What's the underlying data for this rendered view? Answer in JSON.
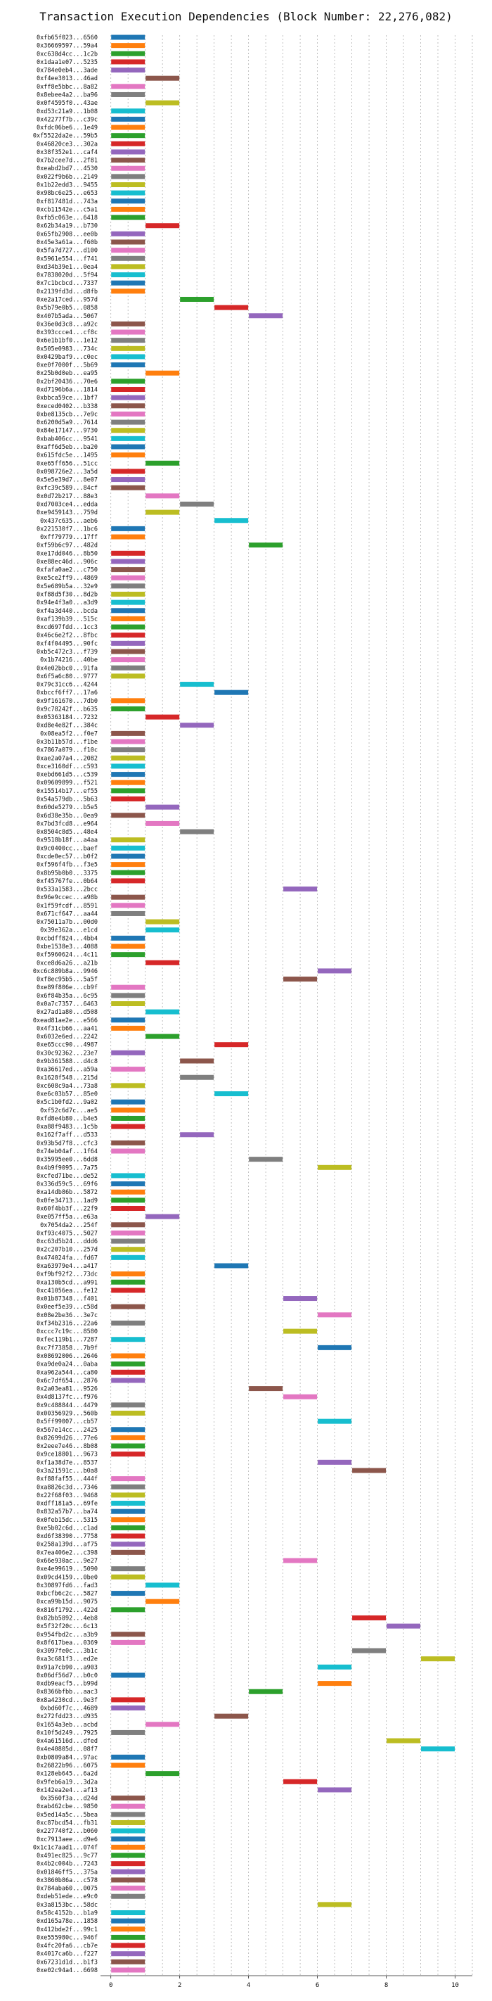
{
  "chart_data": {
    "type": "bar",
    "orientation": "horizontal",
    "title": "Transaction Execution Dependencies (Block Number: 22,276,082)",
    "xlabel": "",
    "ylabel": "",
    "xlim": [
      -0.3,
      10.5
    ],
    "xticks": [
      0,
      2,
      4,
      6,
      8,
      10
    ],
    "grid": "vertical dashed",
    "palette": [
      "#1f77b4",
      "#ff7f0e",
      "#2ca02c",
      "#d62728",
      "#9467bd",
      "#8c564b",
      "#e377c2",
      "#7f7f7f",
      "#bcbd22",
      "#17becf"
    ],
    "bar_width": 1,
    "transactions": [
      {
        "tx": "0xfb65f023...6560",
        "start": 0
      },
      {
        "tx": "0x36669597...59a4",
        "start": 0
      },
      {
        "tx": "0xc638d4cc...1c2b",
        "start": 0
      },
      {
        "tx": "0x1daa1e07...5235",
        "start": 0
      },
      {
        "tx": "0x784e0eb4...3ade",
        "start": 0
      },
      {
        "tx": "0xf4ee3013...46ad",
        "start": 1
      },
      {
        "tx": "0xff8e5bbc...8a82",
        "start": 0
      },
      {
        "tx": "0x8ebee4a2...ba96",
        "start": 0
      },
      {
        "tx": "0x0f4595f0...43ae",
        "start": 1
      },
      {
        "tx": "0xd53c21a9...1b08",
        "start": 0
      },
      {
        "tx": "0x42277f7b...c39c",
        "start": 0
      },
      {
        "tx": "0xfdc06be6...1e49",
        "start": 0
      },
      {
        "tx": "0xf5522da2e...59b5",
        "start": 0
      },
      {
        "tx": "0x46820ce3...302a",
        "start": 0
      },
      {
        "tx": "0x38f352e1...caf4",
        "start": 0
      },
      {
        "tx": "0x7b2cee7d...2f81",
        "start": 0
      },
      {
        "tx": "0xeabd2bd7...4530",
        "start": 0
      },
      {
        "tx": "0x022f9b6b...2149",
        "start": 0
      },
      {
        "tx": "0x1b22edd3...9455",
        "start": 0
      },
      {
        "tx": "0x98bc6e25...e653",
        "start": 0
      },
      {
        "tx": "0xf817481d...743a",
        "start": 0
      },
      {
        "tx": "0xcb11542e...c5a1",
        "start": 0
      },
      {
        "tx": "0xfb5c063e...6418",
        "start": 0
      },
      {
        "tx": "0x62b34a19...b730",
        "start": 1
      },
      {
        "tx": "0x65fb2908...ee0b",
        "start": 0
      },
      {
        "tx": "0x45e3a61a...f60b",
        "start": 0
      },
      {
        "tx": "0x5fa7d727...d100",
        "start": 0
      },
      {
        "tx": "0x5961e554...f741",
        "start": 0
      },
      {
        "tx": "0xd34b39e1...0ea4",
        "start": 0
      },
      {
        "tx": "0x7838020d...5f94",
        "start": 0
      },
      {
        "tx": "0x7c1bcbcd...7337",
        "start": 0
      },
      {
        "tx": "0x2139fd3d...d8fb",
        "start": 0
      },
      {
        "tx": "0xe2a17ced...957d",
        "start": 2
      },
      {
        "tx": "0x5b79e0b5...0858",
        "start": 3
      },
      {
        "tx": "0x407b5ada...5067",
        "start": 4
      },
      {
        "tx": "0x36e0d3c8...a92c",
        "start": 0
      },
      {
        "tx": "0x393ccce4...cf8c",
        "start": 0
      },
      {
        "tx": "0x6e1b1bf0...1e12",
        "start": 0
      },
      {
        "tx": "0x505e0983...734c",
        "start": 0
      },
      {
        "tx": "0x0429baf9...c0ec",
        "start": 0
      },
      {
        "tx": "0xe0f7000f...5b69",
        "start": 0
      },
      {
        "tx": "0x25b0d0eb...ea95",
        "start": 1
      },
      {
        "tx": "0x2bf20436...70e6",
        "start": 0
      },
      {
        "tx": "0xd7196b6a...1814",
        "start": 0
      },
      {
        "tx": "0xbbca59ce...1bf7",
        "start": 0
      },
      {
        "tx": "0xeced0402...b338",
        "start": 0
      },
      {
        "tx": "0xbe8135cb...7e9c",
        "start": 0
      },
      {
        "tx": "0x6200d5a9...7614",
        "start": 0
      },
      {
        "tx": "0x84e17147...9730",
        "start": 0
      },
      {
        "tx": "0xbab406cc...9541",
        "start": 0
      },
      {
        "tx": "0xaff6d5eb...ba20",
        "start": 0
      },
      {
        "tx": "0x615fdc5e...1495",
        "start": 0
      },
      {
        "tx": "0xe65ff656...51cc",
        "start": 1
      },
      {
        "tx": "0x098726e2...3a5d",
        "start": 0
      },
      {
        "tx": "0x5e5e39d7...8e07",
        "start": 0
      },
      {
        "tx": "0xfc39c589...84cf",
        "start": 0
      },
      {
        "tx": "0x0d72b217...88e3",
        "start": 1
      },
      {
        "tx": "0xd7003ce4...edda",
        "start": 2
      },
      {
        "tx": "0xe9459143...759d",
        "start": 1
      },
      {
        "tx": "0x437c635...aeb6",
        "start": 3
      },
      {
        "tx": "0x221530f7...1bc6",
        "start": 0
      },
      {
        "tx": "0xff79779...17ff",
        "start": 0
      },
      {
        "tx": "0xf59b6c97...482d",
        "start": 4
      },
      {
        "tx": "0xe17dd046...8b50",
        "start": 0
      },
      {
        "tx": "0xe88ec46d...906c",
        "start": 0
      },
      {
        "tx": "0xfafa0ae2...c750",
        "start": 0
      },
      {
        "tx": "0xe5ce2ff9...4869",
        "start": 0
      },
      {
        "tx": "0x5e689b5a...32e9",
        "start": 0
      },
      {
        "tx": "0xf88d5f30...8d2b",
        "start": 0
      },
      {
        "tx": "0x94e4f3a0...a3d9",
        "start": 0
      },
      {
        "tx": "0xf4a3d440...bcda",
        "start": 0
      },
      {
        "tx": "0xaf139b39...515c",
        "start": 0
      },
      {
        "tx": "0xcd697fdd...1cc3",
        "start": 0
      },
      {
        "tx": "0x46c6e2f2...8fbc",
        "start": 0
      },
      {
        "tx": "0xf4f04495...90fc",
        "start": 0
      },
      {
        "tx": "0xb5c472c3...f739",
        "start": 0
      },
      {
        "tx": "0x1b74216...40be",
        "start": 0
      },
      {
        "tx": "0x4e02bbc0...91fa",
        "start": 0
      },
      {
        "tx": "0x6f5a6c80...9777",
        "start": 0
      },
      {
        "tx": "0x79c31cc6...4244",
        "start": 2
      },
      {
        "tx": "0xbccf6ff7...17a6",
        "start": 3
      },
      {
        "tx": "0x9f161670...7db0",
        "start": 0
      },
      {
        "tx": "0x9c78242f...b635",
        "start": 0
      },
      {
        "tx": "0x05363184...7232",
        "start": 1
      },
      {
        "tx": "0xd8e4e82f...384c",
        "start": 2
      },
      {
        "tx": "0x08ea5f2...f0e7",
        "start": 0
      },
      {
        "tx": "0x3b11b57d...f1be",
        "start": 0
      },
      {
        "tx": "0x7867a079...f10c",
        "start": 0
      },
      {
        "tx": "0xae2a07a4...2082",
        "start": 0
      },
      {
        "tx": "0xce3160df...c593",
        "start": 0
      },
      {
        "tx": "0xebd661d5...c539",
        "start": 0
      },
      {
        "tx": "0x09609899...f521",
        "start": 0
      },
      {
        "tx": "0x15514b17...ef55",
        "start": 0
      },
      {
        "tx": "0x54a579db...5b63",
        "start": 0
      },
      {
        "tx": "0x60de5279...b5e5",
        "start": 1
      },
      {
        "tx": "0x6d38e35b...0ea9",
        "start": 0
      },
      {
        "tx": "0x7bd3fcd8...e964",
        "start": 1
      },
      {
        "tx": "0x8504c8d5...48e4",
        "start": 2
      },
      {
        "tx": "0x9518b18f...a4aa",
        "start": 0
      },
      {
        "tx": "0x9c0400cc...baef",
        "start": 0
      },
      {
        "tx": "0xcde0ec57...b0f2",
        "start": 0
      },
      {
        "tx": "0xf596f4fb...f3e5",
        "start": 0
      },
      {
        "tx": "0x8b95b0b0...3375",
        "start": 0
      },
      {
        "tx": "0xf45767fe...0b64",
        "start": 0
      },
      {
        "tx": "0x533a1583...2bcc",
        "start": 5
      },
      {
        "tx": "0x96e9ccec...a98b",
        "start": 0
      },
      {
        "tx": "0x1f59fcdf...8591",
        "start": 0
      },
      {
        "tx": "0x671cf647...aa44",
        "start": 0
      },
      {
        "tx": "0x75011a7b...00d0",
        "start": 1
      },
      {
        "tx": "0x39e362a...e1cd",
        "start": 1
      },
      {
        "tx": "0xcbdff824...4bb4",
        "start": 0
      },
      {
        "tx": "0xbe1538e3...4088",
        "start": 0
      },
      {
        "tx": "0xf5960624...4c11",
        "start": 0
      },
      {
        "tx": "0xce8d6a26...a21b",
        "start": 1
      },
      {
        "tx": "0xc6c889b8a...9946",
        "start": 6
      },
      {
        "tx": "0xf8ec95b5...5a5f",
        "start": 5
      },
      {
        "tx": "0xe89f806e...cb9f",
        "start": 0
      },
      {
        "tx": "0x6f84b35a...6c95",
        "start": 0
      },
      {
        "tx": "0x0a7c7357...6463",
        "start": 0
      },
      {
        "tx": "0x27ad1a80...d508",
        "start": 1
      },
      {
        "tx": "0xead81ae2e...e566",
        "start": 0
      },
      {
        "tx": "0x4f31cb66...aa41",
        "start": 0
      },
      {
        "tx": "0x6032e6ed...2242",
        "start": 1
      },
      {
        "tx": "0xe65ccc90...4987",
        "start": 3
      },
      {
        "tx": "0x30c92362...23e7",
        "start": 0
      },
      {
        "tx": "0x9b361588...d4c8",
        "start": 2
      },
      {
        "tx": "0xa36617ed...a59a",
        "start": 0
      },
      {
        "tx": "0x1628f548...215d",
        "start": 2
      },
      {
        "tx": "0xc608c9a4...73a8",
        "start": 0
      },
      {
        "tx": "0xe6c03b57...85e0",
        "start": 3
      },
      {
        "tx": "0x5c1b0fd2...9a02",
        "start": 0
      },
      {
        "tx": "0xf52c6d7c...ae5",
        "start": 0
      },
      {
        "tx": "0xfd8e4b80...b4e5",
        "start": 0
      },
      {
        "tx": "0xa88f9483...1c5b",
        "start": 0
      },
      {
        "tx": "0x162f7aff...d533",
        "start": 2
      },
      {
        "tx": "0x93b5d7f8...cfc3",
        "start": 0
      },
      {
        "tx": "0x74eb04af...1f64",
        "start": 0
      },
      {
        "tx": "0x35995ee0...6dd8",
        "start": 4
      },
      {
        "tx": "0x4b9f9095...7a75",
        "start": 6
      },
      {
        "tx": "0xcfed71be...de52",
        "start": 0
      },
      {
        "tx": "0x336d59c5...69f6",
        "start": 0
      },
      {
        "tx": "0xa14db86b...5872",
        "start": 0
      },
      {
        "tx": "0x0fe34713...1ad9",
        "start": 0
      },
      {
        "tx": "0x60f4bb3f...22f9",
        "start": 0
      },
      {
        "tx": "0xe057ff5a...e63a",
        "start": 1
      },
      {
        "tx": "0x7054da2...254f",
        "start": 0
      },
      {
        "tx": "0xf93c4075...5027",
        "start": 0
      },
      {
        "tx": "0xc63d5b24...ddd6",
        "start": 0
      },
      {
        "tx": "0x2c207b10...257d",
        "start": 0
      },
      {
        "tx": "0x474024fa...fd67",
        "start": 0
      },
      {
        "tx": "0xa63979e4...a417",
        "start": 3
      },
      {
        "tx": "0xf9bf92f2...73dc",
        "start": 0
      },
      {
        "tx": "0xa130b5cd...a991",
        "start": 0
      },
      {
        "tx": "0xc41056ea...fe12",
        "start": 0
      },
      {
        "tx": "0x01b87348...f401",
        "start": 5
      },
      {
        "tx": "0x0eef5e39...c58d",
        "start": 0
      },
      {
        "tx": "0x08e2be36...3e7c",
        "start": 6
      },
      {
        "tx": "0xf34b2316...22a6",
        "start": 0
      },
      {
        "tx": "0xccc7c19c...8580",
        "start": 5
      },
      {
        "tx": "0xfec119b1...7287",
        "start": 0
      },
      {
        "tx": "0xc7f73858...7b9f",
        "start": 6
      },
      {
        "tx": "0x08692006...2646",
        "start": 0
      },
      {
        "tx": "0xa9de0a24...0aba",
        "start": 0
      },
      {
        "tx": "0xa962a544...ca80",
        "start": 0
      },
      {
        "tx": "0x6c7df654...2876",
        "start": 0
      },
      {
        "tx": "0x2a03ea81...9526",
        "start": 4
      },
      {
        "tx": "0x4d8137fc...f976",
        "start": 5
      },
      {
        "tx": "0x9c488844...4479",
        "start": 0
      },
      {
        "tx": "0x00356929...560b",
        "start": 0
      },
      {
        "tx": "0x5ff99007...cb57",
        "start": 6
      },
      {
        "tx": "0x567e14cc...2425",
        "start": 0
      },
      {
        "tx": "0x82699d26...77e6",
        "start": 0
      },
      {
        "tx": "0x2eee7e46...8b08",
        "start": 0
      },
      {
        "tx": "0x9ce18801...9673",
        "start": 0
      },
      {
        "tx": "0xf1a38d7e...8537",
        "start": 6
      },
      {
        "tx": "0x3a21591c...b0a8",
        "start": 7
      },
      {
        "tx": "0xf88faf55...444f",
        "start": 0
      },
      {
        "tx": "0xa8826c3d...7346",
        "start": 0
      },
      {
        "tx": "0x22f68f03...9468",
        "start": 0
      },
      {
        "tx": "0xdff181a5...69fe",
        "start": 0
      },
      {
        "tx": "0x832a57b7...ba74",
        "start": 0
      },
      {
        "tx": "0x0feb15dc...5315",
        "start": 0
      },
      {
        "tx": "0xe5b02c6d...c1ad",
        "start": 0
      },
      {
        "tx": "0xd6f38390...7758",
        "start": 0
      },
      {
        "tx": "0x258a139d...af75",
        "start": 0
      },
      {
        "tx": "0x7ea406e2...c398",
        "start": 0
      },
      {
        "tx": "0x66e930ac...9e27",
        "start": 5
      },
      {
        "tx": "0xe4e99619...5090",
        "start": 0
      },
      {
        "tx": "0x09cd4159...0be0",
        "start": 0
      },
      {
        "tx": "0x30897fd6...fad3",
        "start": 1
      },
      {
        "tx": "0xbcfb6c2c...5827",
        "start": 0
      },
      {
        "tx": "0xca99b15d...9075",
        "start": 1
      },
      {
        "tx": "0x816f1792...422d",
        "start": 0
      },
      {
        "tx": "0x82bb5892...4eb8",
        "start": 7
      },
      {
        "tx": "0x5f32f20c...6c13",
        "start": 8
      },
      {
        "tx": "0x954fbd2c...a3b9",
        "start": 0
      },
      {
        "tx": "0x8f617bea...0369",
        "start": 0
      },
      {
        "tx": "0x3097fe0c...3b1c",
        "start": 7
      },
      {
        "tx": "0xa3c681f3...ed2e",
        "start": 9
      },
      {
        "tx": "0x91a7cb90...a903",
        "start": 6
      },
      {
        "tx": "0x06df56d7...b0c0",
        "start": 0
      },
      {
        "tx": "0xdb9eacf5...b99d",
        "start": 6
      },
      {
        "tx": "0x8366bfbb...aac3",
        "start": 4
      },
      {
        "tx": "0x8a4230cd...9e3f",
        "start": 0
      },
      {
        "tx": "0xbd60f7c...4689",
        "start": 0
      },
      {
        "tx": "0x272fdd23...d935",
        "start": 3
      },
      {
        "tx": "0x1654a3eb...acbd",
        "start": 1
      },
      {
        "tx": "0x10f5d249...7925",
        "start": 0
      },
      {
        "tx": "0x4a61516d...dfed",
        "start": 8
      },
      {
        "tx": "0x4e40805d...08f7",
        "start": 9
      },
      {
        "tx": "0xb0809a84...97ac",
        "start": 0
      },
      {
        "tx": "0x26822b96...6075",
        "start": 0
      },
      {
        "tx": "0x128eb645...6a2d",
        "start": 1
      },
      {
        "tx": "0x9feb6a19...3d2a",
        "start": 5
      },
      {
        "tx": "0x142ea2e4...af13",
        "start": 6
      },
      {
        "tx": "0x3560f3a...d24d",
        "start": 0
      },
      {
        "tx": "0xab462cbe...9850",
        "start": 0
      },
      {
        "tx": "0x5ed14a5c...5bea",
        "start": 0
      },
      {
        "tx": "0xc87bcd54...fb31",
        "start": 0
      },
      {
        "tx": "0x227740f2...b060",
        "start": 0
      },
      {
        "tx": "0xc7913aee...d9e6",
        "start": 0
      },
      {
        "tx": "0x1c1c7aad1...074f",
        "start": 0
      },
      {
        "tx": "0x491ec825...9c77",
        "start": 0
      },
      {
        "tx": "0x4b2c004b...7243",
        "start": 0
      },
      {
        "tx": "0x01846ff5...375a",
        "start": 0
      },
      {
        "tx": "0x3860b86a...c578",
        "start": 0
      },
      {
        "tx": "0x784aba60...0075",
        "start": 0
      },
      {
        "tx": "0xdeb51ede...e9c0",
        "start": 0
      },
      {
        "tx": "0x3a8153bc...58dc",
        "start": 6
      },
      {
        "tx": "0x58c4152b...b1a9",
        "start": 0
      },
      {
        "tx": "0xd165a78e...1858",
        "start": 0
      },
      {
        "tx": "0x412bde2f...99c1",
        "start": 0
      },
      {
        "tx": "0xe555980c...946f",
        "start": 0
      },
      {
        "tx": "0x4fc20fa6...cb7e",
        "start": 0
      },
      {
        "tx": "0x4017ca6b...f227",
        "start": 0
      },
      {
        "tx": "0x67231d1d...b1f3",
        "start": 0
      },
      {
        "tx": "0xe02c94a4...6698",
        "start": 0
      }
    ]
  }
}
